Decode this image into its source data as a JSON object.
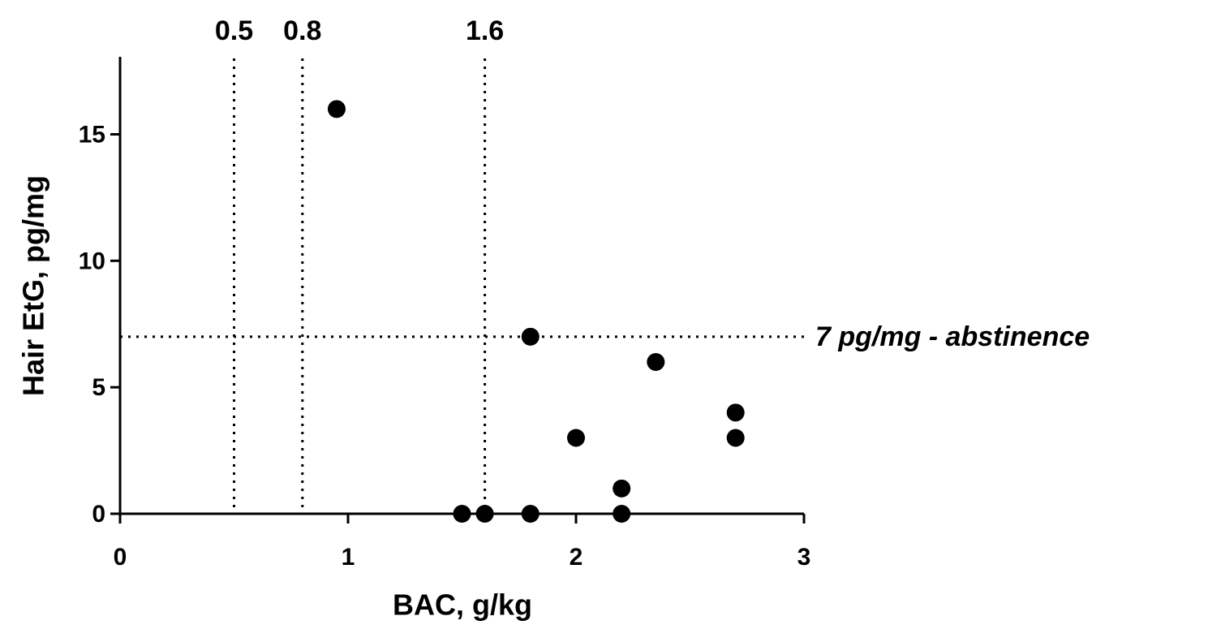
{
  "chart_data": {
    "type": "scatter",
    "x_label": "BAC, g/kg",
    "y_label": "Hair EtG, pg/mg",
    "x": [
      0.95,
      1.8,
      2.35,
      2.7,
      2.7,
      2.0,
      2.2,
      2.2,
      1.5,
      1.6,
      1.8
    ],
    "values": [
      16,
      7,
      6,
      4,
      3,
      3,
      1,
      0,
      0,
      0,
      0
    ],
    "color": "#000000",
    "xlim": [
      0,
      3
    ],
    "ylim": [
      0,
      18
    ],
    "xticks": [
      0,
      1,
      2,
      3
    ],
    "yticks": [
      0,
      5,
      10,
      15
    ],
    "vlines": [
      0.5,
      0.8,
      1.6
    ],
    "hline": {
      "value": 7,
      "label": "7 pg/mg - abstinence"
    }
  }
}
